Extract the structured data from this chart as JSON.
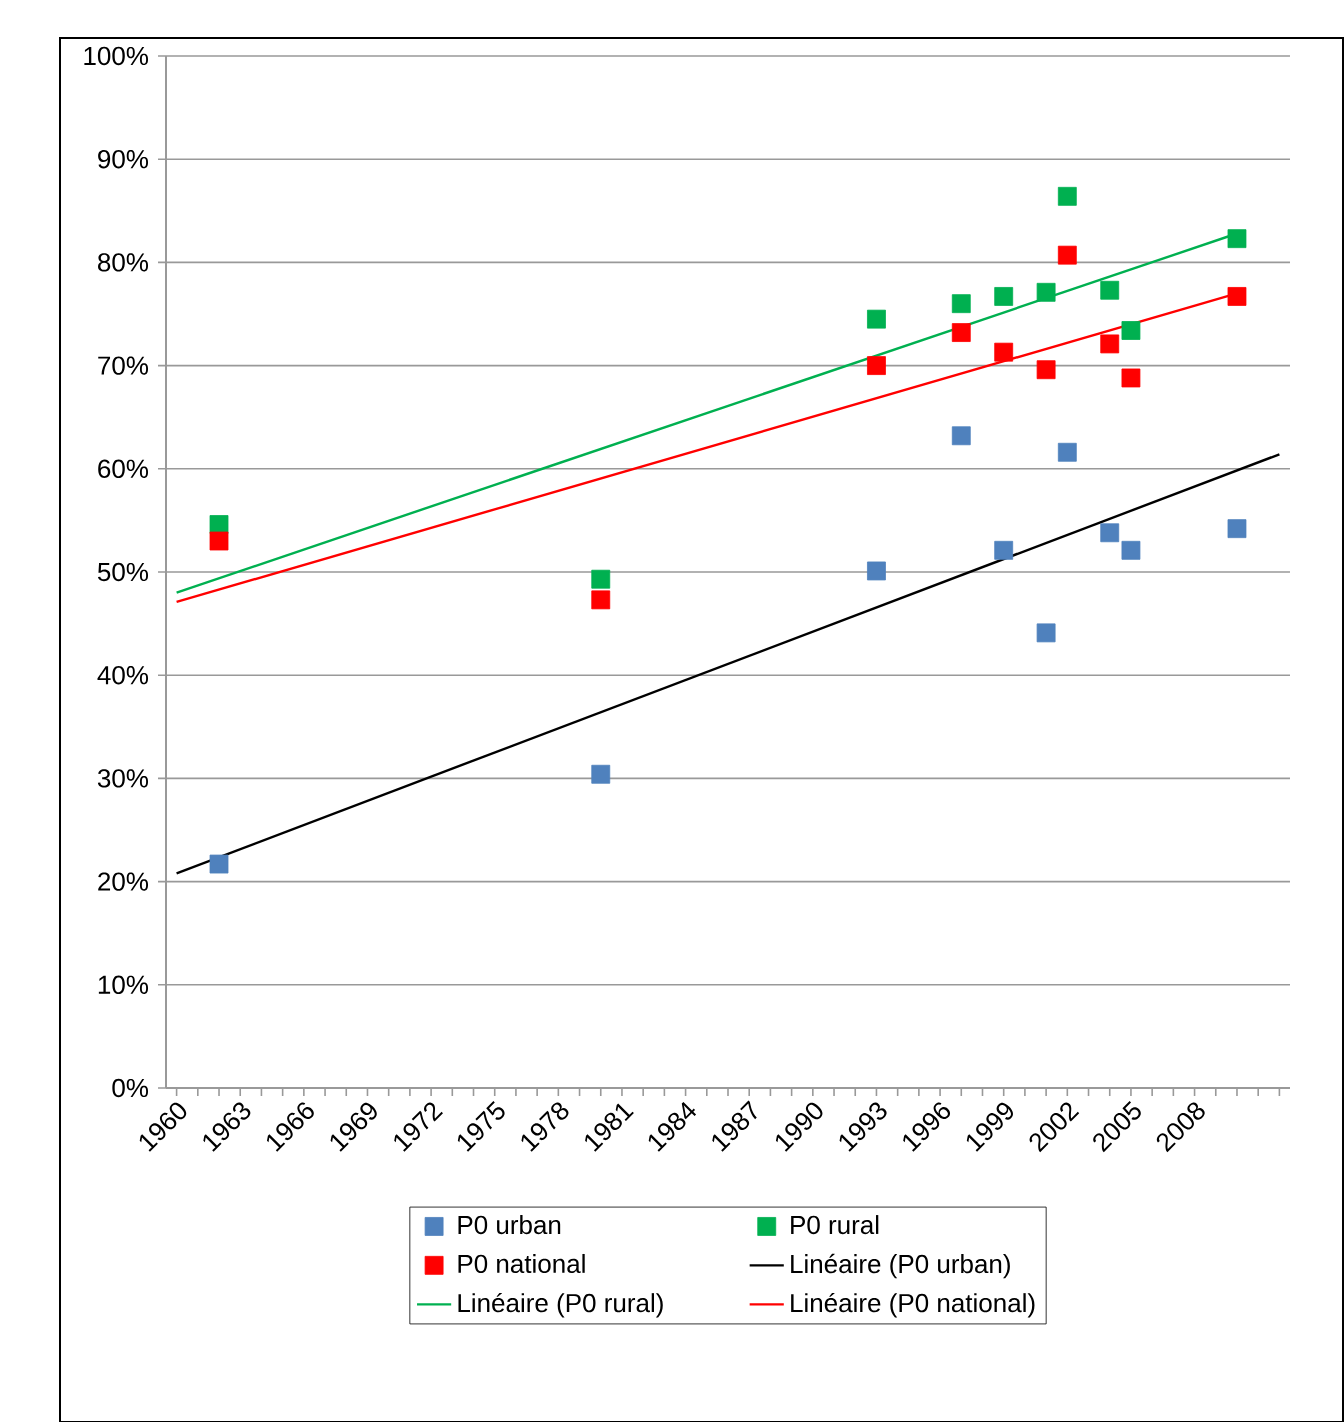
{
  "chart_data": {
    "type": "scatter",
    "marker": "square",
    "grid": "y",
    "legend": "bottom",
    "xlim": [
      1959.5,
      2012.5
    ],
    "xticks": [
      1960,
      {
        "value": 1961,
        "label": null
      },
      {
        "value": 1962,
        "label": null
      },
      1963,
      {
        "value": 1964,
        "label": null
      },
      {
        "value": 1965,
        "label": null
      },
      1966,
      {
        "value": 1967,
        "label": null
      },
      {
        "value": 1968,
        "label": null
      },
      1969,
      {
        "value": 1970,
        "label": null
      },
      {
        "value": 1971,
        "label": null
      },
      1972,
      {
        "value": 1973,
        "label": null
      },
      {
        "value": 1974,
        "label": null
      },
      1975,
      {
        "value": 1976,
        "label": null
      },
      {
        "value": 1977,
        "label": null
      },
      1978,
      {
        "value": 1979,
        "label": null
      },
      {
        "value": 1980,
        "label": null
      },
      1981,
      {
        "value": 1982,
        "label": null
      },
      {
        "value": 1983,
        "label": null
      },
      1984,
      {
        "value": 1985,
        "label": null
      },
      {
        "value": 1986,
        "label": null
      },
      1987,
      {
        "value": 1988,
        "label": null
      },
      {
        "value": 1989,
        "label": null
      },
      1990,
      {
        "value": 1991,
        "label": null
      },
      {
        "value": 1992,
        "label": null
      },
      1993,
      {
        "value": 1994,
        "label": null
      },
      {
        "value": 1995,
        "label": null
      },
      1996,
      {
        "value": 1997,
        "label": null
      },
      {
        "value": 1998,
        "label": null
      },
      1999,
      {
        "value": 2000,
        "label": null
      },
      {
        "value": 2001,
        "label": null
      },
      2002,
      {
        "value": 2003,
        "label": null
      },
      {
        "value": 2004,
        "label": null
      },
      2005,
      {
        "value": 2006,
        "label": null
      },
      {
        "value": 2007,
        "label": null
      },
      2008,
      {
        "value": 2009,
        "label": null
      },
      {
        "value": 2010,
        "label": null
      },
      {
        "value": 2011,
        "label": null
      },
      {
        "value": 2012,
        "label": null
      }
    ],
    "ylim": [
      0,
      100
    ],
    "yticks": [
      {
        "value": 0,
        "label": "0%"
      },
      {
        "value": 10,
        "label": "10%"
      },
      {
        "value": 20,
        "label": "20%"
      },
      {
        "value": 30,
        "label": "30%"
      },
      {
        "value": 40,
        "label": "40%"
      },
      {
        "value": 50,
        "label": "50%"
      },
      {
        "value": 60,
        "label": "60%"
      },
      {
        "value": 70,
        "label": "70%"
      },
      {
        "value": 80,
        "label": "80%"
      },
      {
        "value": 90,
        "label": "90%"
      },
      {
        "value": 100,
        "label": "100%"
      }
    ],
    "x": [
      1962,
      1980,
      1993,
      1997,
      1999,
      2001,
      2002,
      2004,
      2005,
      2010
    ],
    "series": [
      {
        "name": "P0 urban",
        "color": "#4f81bd",
        "values": [
          21.7,
          30.4,
          50.1,
          63.2,
          52.1,
          44.1,
          61.6,
          53.8,
          52.1,
          54.2
        ]
      },
      {
        "name": "P0 rural",
        "color": "#00b050",
        "values": [
          54.6,
          49.3,
          74.5,
          76.0,
          76.7,
          77.1,
          86.4,
          77.3,
          73.4,
          82.3
        ]
      },
      {
        "name": "P0 national",
        "color": "#ff0000",
        "values": [
          53.0,
          47.3,
          70.0,
          73.2,
          71.3,
          69.6,
          80.7,
          72.1,
          68.8,
          76.7
        ]
      },
      {
        "name": "Linéaire (P0 urban)",
        "type": "line",
        "marker": "none",
        "color": "#000000",
        "x": [
          1960,
          2012
        ],
        "values": [
          20.8,
          61.4
        ]
      },
      {
        "name": "Linéaire (P0 rural)",
        "type": "line",
        "marker": "none",
        "color": "#00b050",
        "x": [
          1960,
          2010
        ],
        "values": [
          48.0,
          82.8
        ]
      },
      {
        "name": "Linéaire (P0 national)",
        "type": "line",
        "marker": "none",
        "color": "#ff0000",
        "x": [
          1960,
          2010
        ],
        "values": [
          47.1,
          77.0
        ]
      }
    ]
  }
}
